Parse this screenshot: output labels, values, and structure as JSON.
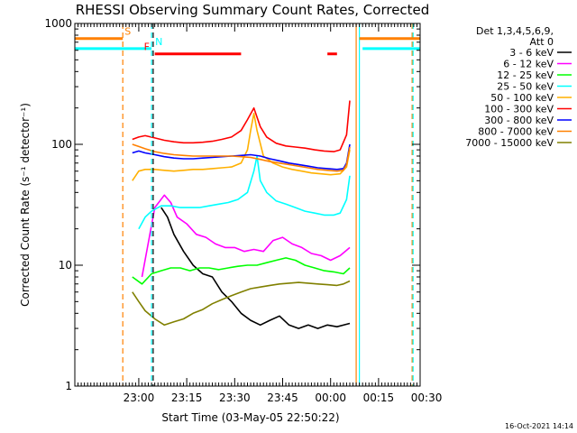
{
  "chart_data": {
    "type": "line",
    "title": "RHESSI Observing Summary Count Rates, Corrected",
    "xlabel": "Start Time (03-May-05 22:50:22)",
    "ylabel": "Corrected Count Rate (s⁻¹ detector⁻¹)",
    "yscale": "log",
    "ylim": [
      1,
      1000
    ],
    "y_ticks": [
      {
        "value": 1,
        "label": "1"
      },
      {
        "value": 10,
        "label": "10"
      },
      {
        "value": 100,
        "label": "100"
      },
      {
        "value": 1000,
        "label": "1000"
      }
    ],
    "xlim_minutes": [
      -10,
      98
    ],
    "x_ticks": [
      {
        "t": 10,
        "label": "23:00"
      },
      {
        "t": 25,
        "label": "23:15"
      },
      {
        "t": 40,
        "label": "23:30"
      },
      {
        "t": 55,
        "label": "23:45"
      },
      {
        "t": 70,
        "label": "00:00"
      },
      {
        "t": 85,
        "label": "00:15"
      },
      {
        "t": 100,
        "label": "00:30"
      }
    ],
    "legend_header": [
      "Det 1,3,4,5,6,9,",
      "Att 0"
    ],
    "legend_position": "right",
    "series": [
      {
        "name": "3 - 6 keV",
        "color": "#000000",
        "points": [
          [
            17,
            30
          ],
          [
            19,
            25
          ],
          [
            21,
            18
          ],
          [
            24,
            13
          ],
          [
            27,
            10
          ],
          [
            30,
            8.5
          ],
          [
            33,
            8
          ],
          [
            36,
            6
          ],
          [
            39,
            5
          ],
          [
            42,
            4
          ],
          [
            45,
            3.5
          ],
          [
            48,
            3.2
          ],
          [
            51,
            3.5
          ],
          [
            54,
            3.8
          ],
          [
            57,
            3.2
          ],
          [
            60,
            3.0
          ],
          [
            63,
            3.2
          ],
          [
            66,
            3.0
          ],
          [
            69,
            3.2
          ],
          [
            72,
            3.1
          ],
          [
            76,
            3.3
          ]
        ]
      },
      {
        "name": "6 - 12 keV",
        "color": "#ff00ff",
        "points": [
          [
            11,
            8
          ],
          [
            15,
            30
          ],
          [
            18,
            38
          ],
          [
            20,
            33
          ],
          [
            22,
            25
          ],
          [
            25,
            22
          ],
          [
            28,
            18
          ],
          [
            31,
            17
          ],
          [
            34,
            15
          ],
          [
            37,
            14
          ],
          [
            40,
            14
          ],
          [
            43,
            13
          ],
          [
            46,
            13.5
          ],
          [
            49,
            13
          ],
          [
            52,
            16
          ],
          [
            55,
            17
          ],
          [
            58,
            15
          ],
          [
            61,
            14
          ],
          [
            64,
            12.5
          ],
          [
            67,
            12
          ],
          [
            70,
            11
          ],
          [
            73,
            12
          ],
          [
            76,
            14
          ]
        ]
      },
      {
        "name": "12 - 25 keV",
        "color": "#00ff00",
        "points": [
          [
            8,
            8
          ],
          [
            11,
            7
          ],
          [
            14,
            8.5
          ],
          [
            17,
            9
          ],
          [
            20,
            9.5
          ],
          [
            23,
            9.5
          ],
          [
            26,
            9
          ],
          [
            29,
            9.5
          ],
          [
            32,
            9.5
          ],
          [
            35,
            9.2
          ],
          [
            38,
            9.5
          ],
          [
            41,
            9.8
          ],
          [
            44,
            10
          ],
          [
            47,
            10
          ],
          [
            50,
            10.5
          ],
          [
            53,
            11
          ],
          [
            56,
            11.5
          ],
          [
            59,
            11
          ],
          [
            62,
            10
          ],
          [
            65,
            9.5
          ],
          [
            68,
            9
          ],
          [
            71,
            8.8
          ],
          [
            74,
            8.5
          ],
          [
            76,
            9.5
          ]
        ]
      },
      {
        "name": "25 - 50 keV",
        "color": "#00ffff",
        "points": [
          [
            10,
            20
          ],
          [
            12,
            25
          ],
          [
            14,
            28
          ],
          [
            17,
            31
          ],
          [
            20,
            31
          ],
          [
            23,
            30
          ],
          [
            26,
            30
          ],
          [
            29,
            30
          ],
          [
            32,
            31
          ],
          [
            35,
            32
          ],
          [
            38,
            33
          ],
          [
            41,
            35
          ],
          [
            44,
            40
          ],
          [
            46,
            60
          ],
          [
            47,
            80
          ],
          [
            48,
            50
          ],
          [
            50,
            40
          ],
          [
            53,
            34
          ],
          [
            56,
            32
          ],
          [
            59,
            30
          ],
          [
            62,
            28
          ],
          [
            65,
            27
          ],
          [
            68,
            26
          ],
          [
            71,
            26
          ],
          [
            73,
            27
          ],
          [
            75,
            35
          ],
          [
            76,
            55
          ]
        ]
      },
      {
        "name": "50 - 100 keV",
        "color": "#ffb000",
        "points": [
          [
            8,
            50
          ],
          [
            10,
            60
          ],
          [
            12,
            62
          ],
          [
            15,
            62
          ],
          [
            18,
            61
          ],
          [
            21,
            60
          ],
          [
            24,
            61
          ],
          [
            27,
            62
          ],
          [
            30,
            62
          ],
          [
            33,
            63
          ],
          [
            36,
            64
          ],
          [
            39,
            65
          ],
          [
            42,
            70
          ],
          [
            44,
            90
          ],
          [
            45,
            130
          ],
          [
            46,
            180
          ],
          [
            47,
            130
          ],
          [
            49,
            80
          ],
          [
            52,
            70
          ],
          [
            55,
            65
          ],
          [
            58,
            62
          ],
          [
            61,
            60
          ],
          [
            64,
            58
          ],
          [
            67,
            57
          ],
          [
            70,
            56
          ],
          [
            73,
            57
          ],
          [
            75,
            65
          ],
          [
            76,
            90
          ]
        ]
      },
      {
        "name": "100 - 300 keV",
        "color": "#ff0000",
        "points": [
          [
            8,
            110
          ],
          [
            10,
            115
          ],
          [
            12,
            118
          ],
          [
            15,
            113
          ],
          [
            18,
            108
          ],
          [
            21,
            105
          ],
          [
            24,
            103
          ],
          [
            27,
            103
          ],
          [
            30,
            104
          ],
          [
            33,
            106
          ],
          [
            36,
            110
          ],
          [
            39,
            115
          ],
          [
            42,
            130
          ],
          [
            44,
            160
          ],
          [
            46,
            200
          ],
          [
            48,
            140
          ],
          [
            50,
            115
          ],
          [
            53,
            102
          ],
          [
            56,
            97
          ],
          [
            59,
            95
          ],
          [
            62,
            93
          ],
          [
            65,
            90
          ],
          [
            68,
            88
          ],
          [
            71,
            87
          ],
          [
            73,
            90
          ],
          [
            75,
            120
          ],
          [
            76,
            230
          ]
        ]
      },
      {
        "name": "300 - 800 keV",
        "color": "#0000ff",
        "points": [
          [
            8,
            85
          ],
          [
            10,
            88
          ],
          [
            12,
            85
          ],
          [
            15,
            82
          ],
          [
            18,
            79
          ],
          [
            21,
            77
          ],
          [
            24,
            76
          ],
          [
            27,
            76
          ],
          [
            30,
            77
          ],
          [
            33,
            78
          ],
          [
            36,
            79
          ],
          [
            39,
            80
          ],
          [
            42,
            81
          ],
          [
            45,
            82
          ],
          [
            48,
            80
          ],
          [
            51,
            76
          ],
          [
            54,
            73
          ],
          [
            57,
            70
          ],
          [
            60,
            68
          ],
          [
            63,
            66
          ],
          [
            66,
            64
          ],
          [
            69,
            63
          ],
          [
            72,
            62
          ],
          [
            74,
            63
          ],
          [
            75,
            70
          ],
          [
            76,
            100
          ]
        ]
      },
      {
        "name": "800 - 7000 keV",
        "color": "#ff8000",
        "points": [
          [
            8,
            100
          ],
          [
            10,
            96
          ],
          [
            12,
            92
          ],
          [
            15,
            87
          ],
          [
            18,
            84
          ],
          [
            21,
            82
          ],
          [
            24,
            81
          ],
          [
            27,
            80
          ],
          [
            30,
            80
          ],
          [
            33,
            80
          ],
          [
            36,
            80
          ],
          [
            39,
            80
          ],
          [
            42,
            79
          ],
          [
            45,
            78
          ],
          [
            48,
            75
          ],
          [
            51,
            72
          ],
          [
            54,
            70
          ],
          [
            57,
            68
          ],
          [
            60,
            66
          ],
          [
            63,
            64
          ],
          [
            66,
            62
          ],
          [
            69,
            61
          ],
          [
            72,
            60
          ],
          [
            74,
            61
          ],
          [
            75,
            68
          ],
          [
            76,
            95
          ]
        ]
      },
      {
        "name": "7000 - 15000 keV",
        "color": "#808000",
        "points": [
          [
            8,
            6
          ],
          [
            10,
            5
          ],
          [
            12,
            4.2
          ],
          [
            15,
            3.6
          ],
          [
            18,
            3.2
          ],
          [
            21,
            3.4
          ],
          [
            24,
            3.6
          ],
          [
            27,
            4.0
          ],
          [
            30,
            4.3
          ],
          [
            33,
            4.8
          ],
          [
            36,
            5.2
          ],
          [
            39,
            5.6
          ],
          [
            42,
            6.0
          ],
          [
            45,
            6.4
          ],
          [
            48,
            6.6
          ],
          [
            51,
            6.8
          ],
          [
            54,
            7.0
          ],
          [
            57,
            7.1
          ],
          [
            60,
            7.2
          ],
          [
            63,
            7.1
          ],
          [
            66,
            7.0
          ],
          [
            69,
            6.9
          ],
          [
            72,
            6.8
          ],
          [
            74,
            7.0
          ],
          [
            76,
            7.4
          ]
        ]
      }
    ],
    "flags": [
      {
        "label": "S",
        "color": "#ff8000",
        "t_start": -10,
        "t_end": 5,
        "y_value": 750
      },
      {
        "label": "N",
        "color": "#00ffff",
        "t_start": -10,
        "t_end": 14,
        "y_value": 620
      },
      {
        "label": "F",
        "color": "#ff0000",
        "t_start": 15,
        "t_end": 42,
        "y_value": 560
      },
      {
        "label": "",
        "color": "#ff0000",
        "t_start": 69,
        "t_end": 72,
        "y_value": 560
      },
      {
        "label": "",
        "color": "#ff8000",
        "t_start": 79,
        "t_end": 98,
        "y_value": 750
      },
      {
        "label": "",
        "color": "#00ffff",
        "t_start": 80,
        "t_end": 98,
        "y_value": 620
      }
    ],
    "vlines": [
      {
        "t": 5,
        "color": "#ff8000",
        "style": "dashed"
      },
      {
        "t": 14,
        "color": "#00ffff",
        "style": "dashed"
      },
      {
        "t": 14.5,
        "color": "#000000",
        "style": "dashed"
      },
      {
        "t": 78,
        "color": "#ff8000",
        "style": "solid"
      },
      {
        "t": 79,
        "color": "#00ffff",
        "style": "solid"
      },
      {
        "t": 95.5,
        "color": "#ff8000",
        "style": "dashed"
      },
      {
        "t": 95.8,
        "color": "#00ffff",
        "style": "dashed"
      }
    ]
  },
  "footer": {
    "timestamp": "16-Oct-2021 14:14"
  }
}
